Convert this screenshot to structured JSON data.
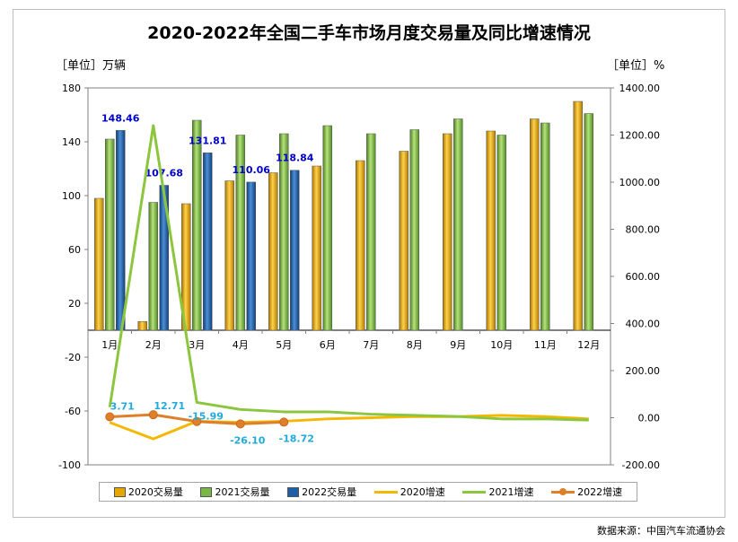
{
  "title": "2020-2022年全国二手车市场月度交易量及同比增速情况",
  "unit_left": "［单位］万辆",
  "unit_right": "［单位］%",
  "source": "数据来源：中国汽车流通协会",
  "colors": {
    "bar2020": "#e6a700",
    "bar2021": "#7ab648",
    "bar2022": "#1f5fa8",
    "line2020": "#f5b800",
    "line2021": "#8cc63f",
    "line2022": "#e07f2b",
    "label2022_volume": "#0000cc",
    "label2022_growth": "#22aadd"
  },
  "chart_data": {
    "type": "bar",
    "title": "2020-2022年全国二手车市场月度交易量及同比增速情况",
    "categories": [
      "1月",
      "2月",
      "3月",
      "4月",
      "5月",
      "6月",
      "7月",
      "8月",
      "9月",
      "10月",
      "11月",
      "12月"
    ],
    "y_left": {
      "label": "［单位］万辆",
      "range": [
        -100,
        180
      ],
      "ticks": [
        -100,
        -60,
        -20,
        20,
        60,
        100,
        140,
        180
      ]
    },
    "y_right": {
      "label": "［单位］%",
      "range": [
        -200,
        1400
      ],
      "ticks": [
        "-200.00",
        "0.00",
        "200.00",
        "400.00",
        "600.00",
        "800.00",
        "1000.00",
        "1200.00",
        "1400.00"
      ]
    },
    "series": [
      {
        "name": "2020交易量",
        "type": "bar",
        "axis": "left",
        "values": [
          98,
          6.5,
          94,
          111,
          117,
          122,
          126,
          133,
          146,
          148,
          157,
          170
        ]
      },
      {
        "name": "2021交易量",
        "type": "bar",
        "axis": "left",
        "values": [
          142,
          95,
          156,
          145,
          146,
          152,
          146,
          149,
          157,
          145,
          154,
          161
        ]
      },
      {
        "name": "2022交易量",
        "type": "bar",
        "axis": "left",
        "values": [
          148.46,
          107.68,
          131.81,
          110.06,
          118.84,
          null,
          null,
          null,
          null,
          null,
          null,
          null
        ],
        "labels": [
          "148.46",
          "107.68",
          "131.81",
          "110.06",
          "118.84"
        ]
      },
      {
        "name": "2020增速",
        "type": "line",
        "axis": "right",
        "values": [
          -20,
          -90,
          -15,
          -20,
          -15,
          -5,
          0,
          5,
          5,
          10,
          5,
          -5
        ]
      },
      {
        "name": "2021增速",
        "type": "line",
        "axis": "right",
        "values": [
          45,
          1240,
          65,
          35,
          25,
          25,
          15,
          10,
          5,
          -5,
          -5,
          -10
        ]
      },
      {
        "name": "2022增速",
        "type": "line",
        "axis": "right",
        "values": [
          3.71,
          12.71,
          -15.99,
          -26.1,
          -18.72,
          null,
          null,
          null,
          null,
          null,
          null,
          null
        ],
        "labels": [
          "3.71",
          "12.71",
          "-15.99",
          "-26.10",
          "-18.72"
        ]
      }
    ],
    "legend": [
      "2020交易量",
      "2021交易量",
      "2022交易量",
      "2020增速",
      "2021增速",
      "2022增速"
    ],
    "legend_position": "bottom"
  }
}
